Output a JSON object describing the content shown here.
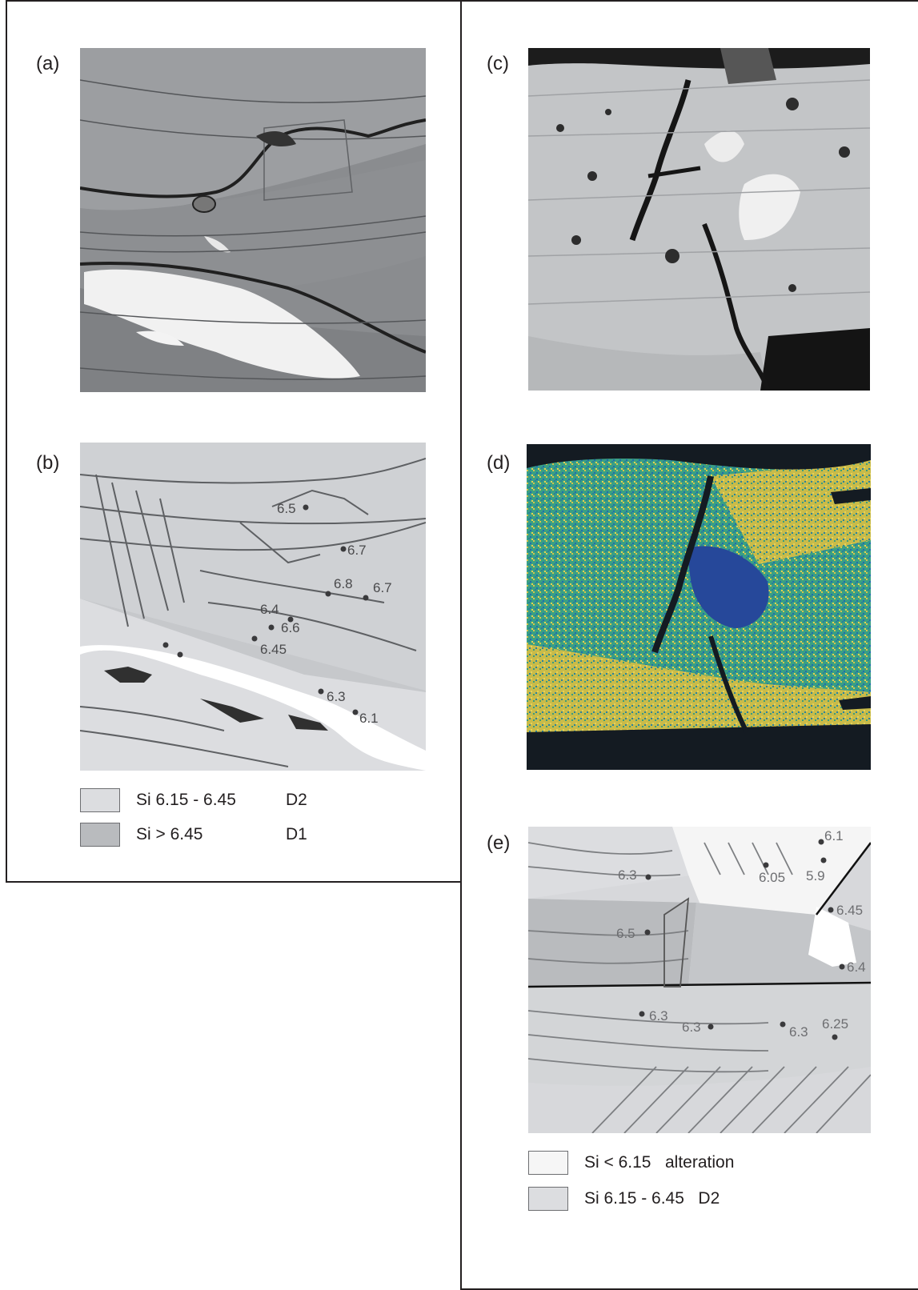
{
  "figure": {
    "panels": {
      "a": {
        "label": "(a)"
      },
      "b": {
        "label": "(b)",
        "points": [
          {
            "label": "6.5"
          },
          {
            "label": "6.7"
          },
          {
            "label": "6.8"
          },
          {
            "label": "6.7"
          },
          {
            "label": "6.4"
          },
          {
            "label": "6.6"
          },
          {
            "label": "6.45"
          },
          {
            "label": "6.3"
          },
          {
            "label": "6.1"
          }
        ]
      },
      "c": {
        "label": "(c)"
      },
      "d": {
        "label": "(d)"
      },
      "e": {
        "label": "(e)",
        "points": [
          {
            "label": "6.1"
          },
          {
            "label": "6.05"
          },
          {
            "label": "5.9"
          },
          {
            "label": "6.3"
          },
          {
            "label": "6.45"
          },
          {
            "label": "6.5"
          },
          {
            "label": "6.4"
          },
          {
            "label": "6.3"
          },
          {
            "label": "6.3"
          },
          {
            "label": "6.3"
          },
          {
            "label": "6.25"
          }
        ]
      }
    },
    "legend_left": [
      {
        "text": "Si 6.15 - 6.45",
        "tag": "D2",
        "color": "#dcdde0"
      },
      {
        "text": "Si > 6.45",
        "tag": "D1",
        "color": "#b9bbbe"
      }
    ],
    "legend_right": [
      {
        "text": "Si < 6.15   alteration",
        "color": "#f6f6f6"
      },
      {
        "text": "Si 6.15 - 6.45   D2",
        "color": "#dcdde0"
      }
    ]
  }
}
